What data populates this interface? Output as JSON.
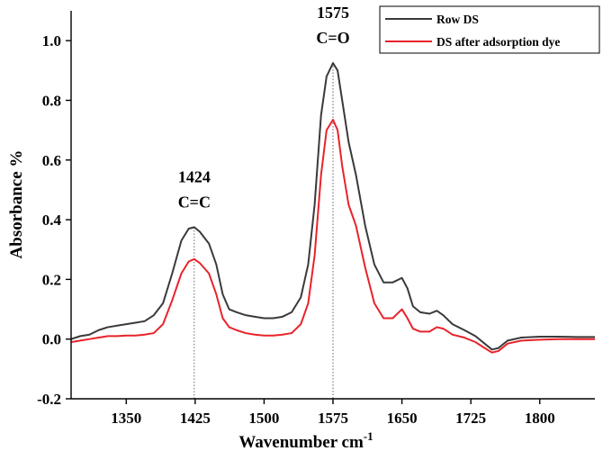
{
  "chart_data": {
    "type": "line",
    "xlabel": "Wavenumber cm",
    "xlabel_superscript": "-1",
    "ylabel": "Absorbance %",
    "xlim": [
      1290,
      1860
    ],
    "ylim": [
      -0.2,
      1.1
    ],
    "xticks": [
      1350,
      1425,
      1500,
      1575,
      1650,
      1725,
      1800
    ],
    "xtick_labels": [
      "1350",
      "1425",
      "1500",
      "1575",
      "1650",
      "1725",
      "1800"
    ],
    "yticks": [
      -0.2,
      0.0,
      0.2,
      0.4,
      0.6,
      0.8,
      1.0
    ],
    "ytick_labels": [
      "-0.2",
      "0.0",
      "0.2",
      "0.4",
      "0.6",
      "0.8",
      "1.0"
    ],
    "grid": false,
    "legend_position": "top-right",
    "series": [
      {
        "name": "Row DS",
        "color": "#3a3a3a",
        "points": [
          [
            1290,
            0.0
          ],
          [
            1300,
            0.01
          ],
          [
            1310,
            0.015
          ],
          [
            1320,
            0.03
          ],
          [
            1330,
            0.04
          ],
          [
            1340,
            0.045
          ],
          [
            1350,
            0.05
          ],
          [
            1360,
            0.055
          ],
          [
            1370,
            0.06
          ],
          [
            1380,
            0.08
          ],
          [
            1390,
            0.12
          ],
          [
            1400,
            0.22
          ],
          [
            1410,
            0.33
          ],
          [
            1418,
            0.37
          ],
          [
            1424,
            0.375
          ],
          [
            1430,
            0.36
          ],
          [
            1440,
            0.32
          ],
          [
            1448,
            0.25
          ],
          [
            1455,
            0.15
          ],
          [
            1462,
            0.1
          ],
          [
            1470,
            0.09
          ],
          [
            1480,
            0.08
          ],
          [
            1490,
            0.075
          ],
          [
            1500,
            0.07
          ],
          [
            1510,
            0.07
          ],
          [
            1520,
            0.075
          ],
          [
            1530,
            0.09
          ],
          [
            1540,
            0.14
          ],
          [
            1548,
            0.25
          ],
          [
            1555,
            0.45
          ],
          [
            1562,
            0.75
          ],
          [
            1568,
            0.88
          ],
          [
            1575,
            0.925
          ],
          [
            1580,
            0.9
          ],
          [
            1585,
            0.8
          ],
          [
            1592,
            0.66
          ],
          [
            1600,
            0.55
          ],
          [
            1610,
            0.38
          ],
          [
            1620,
            0.25
          ],
          [
            1630,
            0.19
          ],
          [
            1640,
            0.19
          ],
          [
            1650,
            0.205
          ],
          [
            1656,
            0.17
          ],
          [
            1662,
            0.11
          ],
          [
            1670,
            0.09
          ],
          [
            1680,
            0.085
          ],
          [
            1688,
            0.095
          ],
          [
            1695,
            0.08
          ],
          [
            1705,
            0.05
          ],
          [
            1718,
            0.03
          ],
          [
            1730,
            0.01
          ],
          [
            1740,
            -0.015
          ],
          [
            1748,
            -0.035
          ],
          [
            1755,
            -0.03
          ],
          [
            1765,
            -0.005
          ],
          [
            1780,
            0.005
          ],
          [
            1800,
            0.008
          ],
          [
            1820,
            0.008
          ],
          [
            1840,
            0.007
          ],
          [
            1860,
            0.007
          ]
        ]
      },
      {
        "name": "DS after adsorption dye",
        "color": "#e8232a",
        "points": [
          [
            1290,
            -0.01
          ],
          [
            1300,
            -0.005
          ],
          [
            1310,
            0.0
          ],
          [
            1320,
            0.005
          ],
          [
            1330,
            0.01
          ],
          [
            1340,
            0.01
          ],
          [
            1350,
            0.012
          ],
          [
            1360,
            0.012
          ],
          [
            1370,
            0.015
          ],
          [
            1380,
            0.02
          ],
          [
            1390,
            0.05
          ],
          [
            1400,
            0.13
          ],
          [
            1410,
            0.22
          ],
          [
            1418,
            0.26
          ],
          [
            1424,
            0.268
          ],
          [
            1430,
            0.255
          ],
          [
            1440,
            0.22
          ],
          [
            1448,
            0.15
          ],
          [
            1455,
            0.07
          ],
          [
            1462,
            0.04
          ],
          [
            1470,
            0.03
          ],
          [
            1480,
            0.02
          ],
          [
            1490,
            0.015
          ],
          [
            1500,
            0.012
          ],
          [
            1510,
            0.012
          ],
          [
            1520,
            0.015
          ],
          [
            1530,
            0.02
          ],
          [
            1540,
            0.05
          ],
          [
            1548,
            0.12
          ],
          [
            1555,
            0.28
          ],
          [
            1562,
            0.55
          ],
          [
            1568,
            0.7
          ],
          [
            1575,
            0.735
          ],
          [
            1580,
            0.7
          ],
          [
            1585,
            0.58
          ],
          [
            1592,
            0.45
          ],
          [
            1600,
            0.38
          ],
          [
            1610,
            0.24
          ],
          [
            1620,
            0.12
          ],
          [
            1630,
            0.07
          ],
          [
            1640,
            0.07
          ],
          [
            1650,
            0.1
          ],
          [
            1656,
            0.07
          ],
          [
            1662,
            0.035
          ],
          [
            1670,
            0.025
          ],
          [
            1680,
            0.025
          ],
          [
            1688,
            0.04
          ],
          [
            1695,
            0.035
          ],
          [
            1705,
            0.015
          ],
          [
            1718,
            0.005
          ],
          [
            1730,
            -0.01
          ],
          [
            1740,
            -0.03
          ],
          [
            1748,
            -0.045
          ],
          [
            1755,
            -0.04
          ],
          [
            1765,
            -0.015
          ],
          [
            1780,
            -0.005
          ],
          [
            1800,
            -0.002
          ],
          [
            1820,
            0.0
          ],
          [
            1840,
            0.0
          ],
          [
            1860,
            0.0
          ]
        ]
      }
    ],
    "annotations": [
      {
        "x": 1424,
        "y_line_top": 0.375,
        "label_top": "1424",
        "label_bottom": "C=C"
      },
      {
        "x": 1575,
        "y_line_top": 0.925,
        "label_top": "1575",
        "label_bottom": "C=O"
      }
    ]
  }
}
